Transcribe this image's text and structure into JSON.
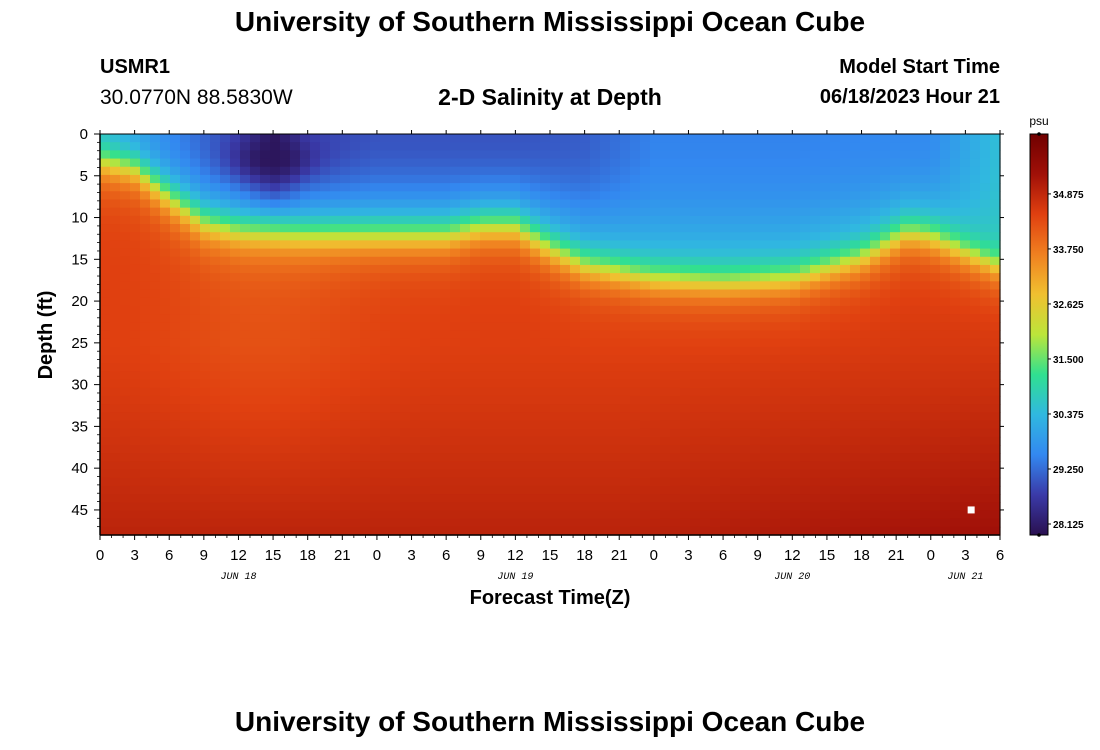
{
  "header": {
    "title": "University of Southern Mississippi Ocean Cube",
    "station": "USMR1",
    "coords": "30.0770N  88.5830W",
    "plot_title": "2-D Salinity at Depth",
    "model_label": "Model Start Time",
    "model_time": "06/18/2023 Hour 21"
  },
  "footer": {
    "title": "University of Southern Mississippi Ocean Cube"
  },
  "chart_data": {
    "type": "heatmap",
    "title": "2-D Salinity at Depth",
    "xlabel": "Forecast Time(Z)",
    "ylabel": "Depth (ft)",
    "x_range_hours": [
      0,
      78
    ],
    "x_ticks": [
      "0",
      "3",
      "6",
      "9",
      "12",
      "15",
      "18",
      "21",
      "0",
      "3",
      "6",
      "9",
      "12",
      "15",
      "18",
      "21",
      "0",
      "3",
      "6",
      "9",
      "12",
      "15",
      "18",
      "21",
      "0",
      "3",
      "6"
    ],
    "x_tick_step_hours": 3,
    "date_labels": [
      {
        "label": "JUN 18",
        "hour": 12
      },
      {
        "label": "JUN 19",
        "hour": 36
      },
      {
        "label": "JUN 20",
        "hour": 60
      },
      {
        "label": "JUN 21",
        "hour": 75
      }
    ],
    "y_range_ft": [
      0,
      48
    ],
    "y_ticks": [
      0,
      5,
      10,
      15,
      20,
      25,
      30,
      35,
      40,
      45
    ],
    "colorbar": {
      "unit": "psu",
      "range": [
        27.9,
        36.1
      ],
      "ticks": [
        "28.125",
        "29.250",
        "30.375",
        "31.500",
        "32.625",
        "33.750",
        "34.875"
      ],
      "tick_values": [
        28.125,
        29.25,
        30.375,
        31.5,
        32.625,
        33.75,
        34.875
      ],
      "colors": [
        "#2a1050",
        "#3a3aa8",
        "#3388f0",
        "#30b8e0",
        "#30e090",
        "#bce53a",
        "#f0c030",
        "#f08020",
        "#e04010",
        "#a01008",
        "#700000"
      ]
    },
    "field": {
      "halocline_depth_ft": [
        {
          "hour": 0,
          "depth": 2.5
        },
        {
          "hour": 3,
          "depth": 3.5
        },
        {
          "hour": 6,
          "depth": 7
        },
        {
          "hour": 9,
          "depth": 10
        },
        {
          "hour": 12,
          "depth": 11
        },
        {
          "hour": 18,
          "depth": 11.5
        },
        {
          "hour": 24,
          "depth": 11.5
        },
        {
          "hour": 30,
          "depth": 11.5
        },
        {
          "hour": 33,
          "depth": 10.5
        },
        {
          "hour": 36,
          "depth": 10.5
        },
        {
          "hour": 39,
          "depth": 13
        },
        {
          "hour": 42,
          "depth": 15
        },
        {
          "hour": 48,
          "depth": 16.5
        },
        {
          "hour": 54,
          "depth": 17
        },
        {
          "hour": 60,
          "depth": 16.5
        },
        {
          "hour": 66,
          "depth": 14
        },
        {
          "hour": 70,
          "depth": 11
        },
        {
          "hour": 72,
          "depth": 11.5
        },
        {
          "hour": 78,
          "depth": 15
        }
      ],
      "surface_salinity": [
        {
          "hour": 0,
          "psu": 30.6
        },
        {
          "hour": 6,
          "psu": 29.6
        },
        {
          "hour": 9,
          "psu": 29.2
        },
        {
          "hour": 12,
          "psu": 28.8
        },
        {
          "hour": 15,
          "psu": 28.0
        },
        {
          "hour": 18,
          "psu": 28.8
        },
        {
          "hour": 24,
          "psu": 29.0
        },
        {
          "hour": 36,
          "psu": 29.0
        },
        {
          "hour": 42,
          "psu": 29.1
        },
        {
          "hour": 48,
          "psu": 29.5
        },
        {
          "hour": 60,
          "psu": 29.5
        },
        {
          "hour": 72,
          "psu": 29.6
        },
        {
          "hour": 78,
          "psu": 30.5
        }
      ],
      "low_salinity_core": {
        "hour": 15,
        "depth_ft": 3,
        "psu": 28.0
      },
      "deep_salinity_psu": 35.2,
      "marker": {
        "hour": 75.5,
        "depth_ft": 45
      }
    }
  }
}
